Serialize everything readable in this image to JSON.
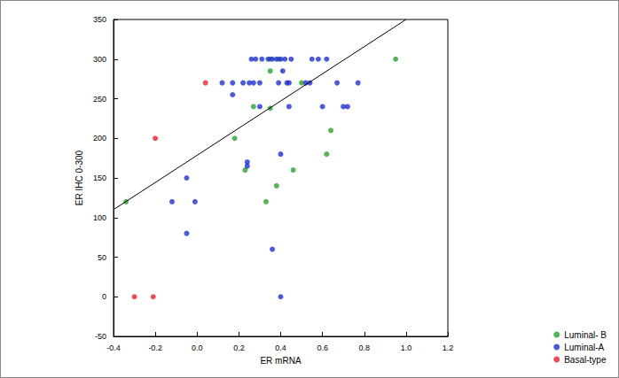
{
  "chart_data": {
    "type": "scatter",
    "xlabel": "ER mRNA",
    "ylabel": "ER IHC 0-300",
    "xlim": [
      -0.4,
      1.2
    ],
    "xticks": [
      -0.4,
      -0.2,
      {
        "value": 0,
        "label": "0.0"
      },
      0.2,
      0.4,
      0.6,
      0.8,
      {
        "value": 1,
        "label": "1.0"
      },
      1.2
    ],
    "ylim": [
      -50,
      350
    ],
    "yticks": [
      -50,
      0,
      50,
      100,
      150,
      200,
      250,
      300,
      350
    ],
    "grid": false,
    "legend": "lower right",
    "marker": "circle",
    "series": [
      {
        "name": "Luminal- B",
        "color": "#2ca02c",
        "x": [
          0.95,
          0.64,
          0.62,
          0.5,
          0.39,
          0.35,
          0.35,
          0.27,
          0.23,
          0.18,
          0.33,
          0.38,
          0.46,
          -0.34,
          0.35
        ],
        "values": [
          300,
          210,
          180,
          270,
          300,
          285,
          238,
          240,
          160,
          200,
          120,
          140,
          160,
          120,
          300
        ]
      },
      {
        "name": "Luminal-A",
        "color": "#1f2fd0",
        "x": [
          0.26,
          0.28,
          0.31,
          0.34,
          0.36,
          0.38,
          0.4,
          0.42,
          0.45,
          0.55,
          0.58,
          0.62,
          0.12,
          0.17,
          0.22,
          0.25,
          0.27,
          0.3,
          0.39,
          0.43,
          0.44,
          0.52,
          0.54,
          0.67,
          0.77,
          0.41,
          0.17,
          0.3,
          0.44,
          0.6,
          0.7,
          0.72,
          0.24,
          0.24,
          0.4,
          -0.05,
          -0.12,
          -0.01,
          -0.05,
          0.36,
          0.4
        ],
        "values": [
          300,
          300,
          300,
          300,
          300,
          300,
          300,
          300,
          300,
          300,
          300,
          300,
          270,
          270,
          270,
          270,
          270,
          270,
          270,
          270,
          270,
          270,
          270,
          270,
          270,
          285,
          255,
          240,
          240,
          240,
          240,
          240,
          170,
          165,
          180,
          150,
          120,
          120,
          80,
          60,
          0
        ]
      },
      {
        "name": "Basal-type",
        "color": "#e8202a",
        "x": [
          -0.2,
          0.04,
          -0.3,
          -0.21
        ],
        "values": [
          200,
          270,
          0,
          0
        ]
      }
    ],
    "trend": {
      "x": [
        -0.4,
        1.0
      ],
      "values": [
        110,
        350
      ],
      "color": "#000000"
    }
  }
}
